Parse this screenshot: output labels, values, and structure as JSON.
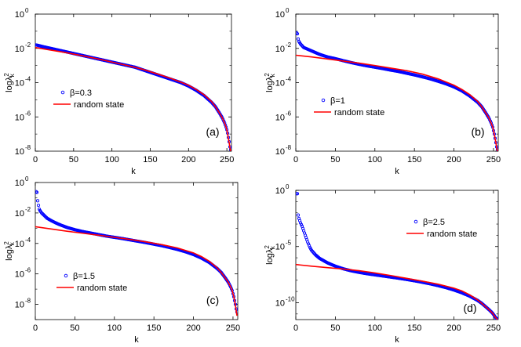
{
  "chart_data": [
    {
      "type": "line",
      "panel_label": "(a)",
      "legend": {
        "marker_label": "β=0.3",
        "line_label": "random state"
      },
      "xlabel": "k",
      "ylabel": "logλ",
      "ylabel_exponent": "2",
      "ylabel_subscript": "k",
      "xlim": [
        0,
        256
      ],
      "ylim_log10": [
        -8,
        0
      ],
      "x_ticks": [
        0,
        50,
        100,
        150,
        200,
        250
      ],
      "x_tick_labels": [
        "0",
        "50",
        "100",
        "150",
        "200",
        "250"
      ],
      "y_ticks_log10": [
        -8,
        -6,
        -4,
        -2,
        0
      ],
      "y_tick_labels": [
        {
          "base": "10",
          "exp": "-8"
        },
        {
          "base": "10",
          "exp": "-6"
        },
        {
          "base": "10",
          "exp": "-4"
        },
        {
          "base": "10",
          "exp": "-2"
        },
        {
          "base": "10",
          "exp": "0"
        }
      ],
      "series": [
        {
          "name": "β=0.3",
          "style": "circle-markers",
          "color": "#0000ff",
          "x": [
            1,
            10,
            20,
            30,
            40,
            50,
            60,
            70,
            80,
            90,
            100,
            110,
            120,
            130,
            140,
            150,
            160,
            170,
            180,
            190,
            200,
            210,
            220,
            230,
            235,
            240,
            244,
            247,
            249,
            250,
            251,
            252,
            253,
            254,
            255
          ],
          "log10_y": [
            -1.8,
            -1.9,
            -2.0,
            -2.1,
            -2.2,
            -2.3,
            -2.4,
            -2.5,
            -2.6,
            -2.7,
            -2.8,
            -2.9,
            -3.0,
            -3.1,
            -3.25,
            -3.4,
            -3.55,
            -3.7,
            -3.85,
            -4.0,
            -4.2,
            -4.45,
            -4.75,
            -5.15,
            -5.4,
            -5.75,
            -6.05,
            -6.35,
            -6.6,
            -6.75,
            -6.95,
            -7.2,
            -7.45,
            -7.75,
            -7.9
          ]
        },
        {
          "name": "random state",
          "style": "line",
          "color": "#ff0000",
          "x": [
            0,
            20,
            40,
            60,
            80,
            100,
            120,
            140,
            160,
            180,
            200,
            210,
            220,
            230,
            235,
            240,
            244,
            247,
            249,
            250,
            251,
            252,
            253,
            254,
            255
          ],
          "log10_y": [
            -1.95,
            -2.1,
            -2.25,
            -2.42,
            -2.6,
            -2.8,
            -3.0,
            -3.22,
            -3.5,
            -3.8,
            -4.15,
            -4.4,
            -4.7,
            -5.1,
            -5.4,
            -5.75,
            -6.05,
            -6.35,
            -6.6,
            -6.8,
            -7.0,
            -7.25,
            -7.5,
            -7.8,
            -8.0
          ]
        }
      ]
    },
    {
      "type": "line",
      "panel_label": "(b)",
      "legend": {
        "marker_label": "β=1",
        "line_label": "random state"
      },
      "xlabel": "k",
      "ylabel": "logλ",
      "ylabel_exponent": "2",
      "ylabel_subscript": "k",
      "xlim": [
        0,
        256
      ],
      "ylim_log10": [
        -8,
        0
      ],
      "x_ticks": [
        0,
        50,
        100,
        150,
        200,
        250
      ],
      "x_tick_labels": [
        "0",
        "50",
        "100",
        "150",
        "200",
        "250"
      ],
      "y_ticks_log10": [
        -8,
        -6,
        -4,
        -2,
        0
      ],
      "y_tick_labels": [
        {
          "base": "10",
          "exp": "-8"
        },
        {
          "base": "10",
          "exp": "-6"
        },
        {
          "base": "10",
          "exp": "-4"
        },
        {
          "base": "10",
          "exp": "-2"
        },
        {
          "base": "10",
          "exp": "0"
        }
      ],
      "series": [
        {
          "name": "β=1",
          "style": "circle-markers",
          "color": "#0000ff",
          "x": [
            1,
            2,
            3,
            4,
            6,
            8,
            10,
            15,
            20,
            30,
            40,
            50,
            60,
            70,
            80,
            90,
            100,
            110,
            120,
            130,
            140,
            150,
            160,
            170,
            180,
            190,
            200,
            210,
            220,
            230,
            235,
            240,
            244,
            247,
            249,
            250,
            251,
            252,
            253,
            254,
            255
          ],
          "log10_y": [
            -1.1,
            -1.15,
            -1.45,
            -1.6,
            -1.75,
            -1.85,
            -1.95,
            -2.05,
            -2.15,
            -2.35,
            -2.5,
            -2.6,
            -2.72,
            -2.83,
            -2.93,
            -3.02,
            -3.1,
            -3.18,
            -3.27,
            -3.35,
            -3.45,
            -3.55,
            -3.66,
            -3.78,
            -3.92,
            -4.07,
            -4.25,
            -4.48,
            -4.78,
            -5.15,
            -5.4,
            -5.75,
            -6.05,
            -6.35,
            -6.6,
            -6.8,
            -7.0,
            -7.25,
            -7.5,
            -7.75,
            -7.9
          ]
        },
        {
          "name": "random state",
          "style": "line",
          "color": "#ff0000",
          "x": [
            0,
            20,
            40,
            60,
            80,
            100,
            120,
            140,
            160,
            180,
            200,
            210,
            220,
            230,
            235,
            240,
            244,
            247,
            249,
            250,
            251,
            252,
            253,
            254,
            255
          ],
          "log10_y": [
            -2.4,
            -2.5,
            -2.62,
            -2.74,
            -2.86,
            -3.0,
            -3.15,
            -3.3,
            -3.5,
            -3.78,
            -4.15,
            -4.4,
            -4.7,
            -5.1,
            -5.4,
            -5.75,
            -6.05,
            -6.35,
            -6.6,
            -6.8,
            -7.0,
            -7.25,
            -7.5,
            -7.8,
            -8.0
          ]
        }
      ]
    },
    {
      "type": "line",
      "panel_label": "(c)",
      "legend": {
        "marker_label": "β=1.5",
        "line_label": "random state"
      },
      "xlabel": "k",
      "ylabel": "logλ",
      "ylabel_exponent": "2",
      "ylabel_subscript": "k",
      "xlim": [
        0,
        256
      ],
      "ylim_log10": [
        -9,
        0
      ],
      "x_ticks": [
        0,
        50,
        100,
        150,
        200,
        250
      ],
      "x_tick_labels": [
        "0",
        "50",
        "100",
        "150",
        "200",
        "250"
      ],
      "y_ticks_log10": [
        -8,
        -6,
        -4,
        -2,
        0
      ],
      "y_tick_labels": [
        {
          "base": "10",
          "exp": "-8"
        },
        {
          "base": "10",
          "exp": "-6"
        },
        {
          "base": "10",
          "exp": "-4"
        },
        {
          "base": "10",
          "exp": "-2"
        },
        {
          "base": "10",
          "exp": "0"
        }
      ],
      "series": [
        {
          "name": "β=1.5",
          "style": "circle-markers",
          "color": "#0000ff",
          "x": [
            1,
            2,
            3,
            4,
            5,
            6,
            8,
            10,
            12,
            15,
            20,
            25,
            30,
            40,
            50,
            60,
            70,
            80,
            90,
            100,
            110,
            120,
            130,
            140,
            150,
            160,
            170,
            180,
            190,
            200,
            210,
            220,
            230,
            235,
            240,
            244,
            247,
            249,
            250,
            251,
            252,
            253,
            254,
            255
          ],
          "log10_y": [
            -0.6,
            -0.65,
            -1.2,
            -1.5,
            -1.75,
            -1.85,
            -2.0,
            -2.1,
            -2.2,
            -2.35,
            -2.5,
            -2.63,
            -2.75,
            -2.95,
            -3.1,
            -3.22,
            -3.32,
            -3.42,
            -3.52,
            -3.6,
            -3.68,
            -3.77,
            -3.86,
            -3.95,
            -4.05,
            -4.15,
            -4.27,
            -4.4,
            -4.55,
            -4.73,
            -4.96,
            -5.25,
            -5.65,
            -5.9,
            -6.25,
            -6.55,
            -6.85,
            -7.1,
            -7.3,
            -7.5,
            -7.75,
            -8.0,
            -8.3,
            -8.5
          ]
        },
        {
          "name": "random state",
          "style": "line",
          "color": "#ff0000",
          "x": [
            0,
            20,
            40,
            60,
            80,
            100,
            120,
            140,
            160,
            180,
            200,
            210,
            220,
            230,
            235,
            240,
            244,
            247,
            249,
            250,
            251,
            252,
            253,
            254,
            255
          ],
          "log10_y": [
            -2.9,
            -3.05,
            -3.2,
            -3.33,
            -3.46,
            -3.6,
            -3.74,
            -3.9,
            -4.08,
            -4.3,
            -4.62,
            -4.86,
            -5.17,
            -5.6,
            -5.9,
            -6.25,
            -6.55,
            -6.85,
            -7.1,
            -7.3,
            -7.5,
            -7.75,
            -8.05,
            -8.4,
            -8.75
          ]
        }
      ]
    },
    {
      "type": "line",
      "panel_label": "(d)",
      "legend": {
        "marker_label": "β=2.5",
        "line_label": "random state"
      },
      "xlabel": "k",
      "ylabel": "logλ",
      "ylabel_exponent": "2",
      "ylabel_subscript": "k",
      "xlim": [
        0,
        256
      ],
      "ylim_log10": [
        -11.5,
        0
      ],
      "x_ticks": [
        0,
        50,
        100,
        150,
        200,
        250
      ],
      "x_tick_labels": [
        "0",
        "50",
        "100",
        "150",
        "200",
        "250"
      ],
      "y_ticks_log10": [
        -10,
        -5,
        0
      ],
      "y_tick_labels": [
        {
          "base": "10",
          "exp": "-10"
        },
        {
          "base": "10",
          "exp": "-5"
        },
        {
          "base": "10",
          "exp": "0"
        }
      ],
      "series": [
        {
          "name": "β=2.5",
          "style": "circle-markers",
          "color": "#0000ff",
          "x": [
            1,
            2,
            3,
            4,
            5,
            6,
            8,
            10,
            12,
            15,
            18,
            20,
            25,
            30,
            40,
            50,
            60,
            70,
            80,
            90,
            100,
            110,
            120,
            130,
            140,
            150,
            160,
            170,
            180,
            190,
            200,
            210,
            220,
            230,
            235,
            240,
            244,
            247,
            249,
            250,
            251,
            252,
            253,
            254,
            255
          ],
          "log10_y": [
            -0.3,
            -0.3,
            -2.2,
            -2.5,
            -2.7,
            -2.9,
            -3.2,
            -3.6,
            -4.0,
            -4.6,
            -5.1,
            -5.35,
            -5.75,
            -6.05,
            -6.45,
            -6.75,
            -6.98,
            -7.16,
            -7.3,
            -7.42,
            -7.52,
            -7.62,
            -7.72,
            -7.82,
            -7.93,
            -8.05,
            -8.18,
            -8.32,
            -8.48,
            -8.66,
            -8.87,
            -9.12,
            -9.42,
            -9.8,
            -10.05,
            -10.35,
            -10.6,
            -10.8,
            -10.95,
            -11.05,
            -11.15,
            -11.25,
            -11.35,
            -11.4,
            -11.45
          ]
        },
        {
          "name": "random state",
          "style": "line",
          "color": "#ff0000",
          "x": [
            0,
            20,
            40,
            60,
            80,
            100,
            120,
            140,
            160,
            180,
            200,
            210,
            220,
            230,
            235,
            240,
            244,
            247,
            249,
            250,
            251,
            252,
            253,
            254,
            255
          ],
          "log10_y": [
            -6.6,
            -6.75,
            -6.88,
            -7.0,
            -7.15,
            -7.35,
            -7.58,
            -7.83,
            -8.08,
            -8.35,
            -8.7,
            -8.95,
            -9.3,
            -9.75,
            -10.05,
            -10.35,
            -10.6,
            -10.8,
            -10.95,
            -11.05,
            -11.15,
            -11.25,
            -11.35,
            -11.42,
            -11.5
          ]
        }
      ]
    }
  ]
}
